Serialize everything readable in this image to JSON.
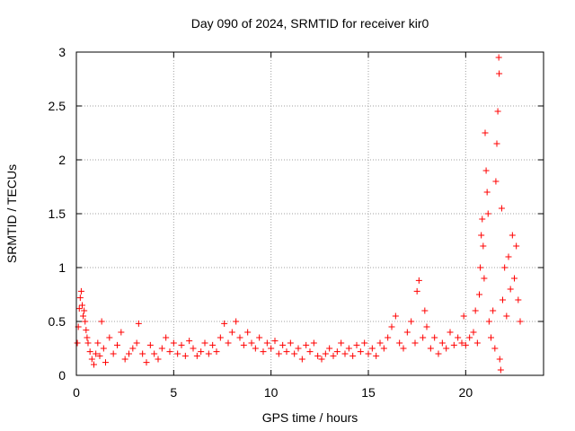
{
  "chart_data": {
    "type": "scatter",
    "title": "Day 090 of 2024, SRMTID for receiver kir0",
    "xlabel": "GPS time / hours",
    "ylabel": "SRMTID / TECUs",
    "xlim": [
      0,
      24
    ],
    "ylim": [
      0,
      3
    ],
    "xticks": [
      0,
      5,
      10,
      15,
      20
    ],
    "yticks": [
      0,
      0.5,
      1,
      1.5,
      2,
      2.5,
      3
    ],
    "xtick_labels": [
      "0",
      "5",
      "10",
      "15",
      "20"
    ],
    "ytick_labels": [
      "0",
      "0.5",
      "1",
      "1.5",
      "2",
      "2.5",
      "3"
    ],
    "grid": true,
    "marker": "+",
    "series": [
      {
        "name": "kir0",
        "color": "#ff0000",
        "points": [
          [
            0.05,
            0.3
          ],
          [
            0.1,
            0.45
          ],
          [
            0.15,
            0.62
          ],
          [
            0.2,
            0.72
          ],
          [
            0.25,
            0.78
          ],
          [
            0.3,
            0.65
          ],
          [
            0.35,
            0.55
          ],
          [
            0.4,
            0.6
          ],
          [
            0.45,
            0.5
          ],
          [
            0.5,
            0.42
          ],
          [
            0.55,
            0.35
          ],
          [
            0.6,
            0.3
          ],
          [
            0.7,
            0.22
          ],
          [
            0.8,
            0.15
          ],
          [
            0.9,
            0.1
          ],
          [
            1.0,
            0.2
          ],
          [
            1.1,
            0.3
          ],
          [
            1.2,
            0.18
          ],
          [
            1.3,
            0.5
          ],
          [
            1.4,
            0.25
          ],
          [
            1.5,
            0.12
          ],
          [
            1.7,
            0.35
          ],
          [
            1.9,
            0.2
          ],
          [
            2.1,
            0.28
          ],
          [
            2.3,
            0.4
          ],
          [
            2.5,
            0.15
          ],
          [
            2.7,
            0.2
          ],
          [
            2.9,
            0.25
          ],
          [
            3.1,
            0.3
          ],
          [
            3.2,
            0.48
          ],
          [
            3.4,
            0.2
          ],
          [
            3.6,
            0.12
          ],
          [
            3.8,
            0.28
          ],
          [
            4.0,
            0.2
          ],
          [
            4.2,
            0.15
          ],
          [
            4.4,
            0.25
          ],
          [
            4.6,
            0.35
          ],
          [
            4.8,
            0.22
          ],
          [
            5.0,
            0.3
          ],
          [
            5.2,
            0.2
          ],
          [
            5.4,
            0.28
          ],
          [
            5.6,
            0.18
          ],
          [
            5.8,
            0.32
          ],
          [
            6.0,
            0.25
          ],
          [
            6.2,
            0.18
          ],
          [
            6.4,
            0.22
          ],
          [
            6.6,
            0.3
          ],
          [
            6.8,
            0.2
          ],
          [
            7.0,
            0.28
          ],
          [
            7.2,
            0.22
          ],
          [
            7.4,
            0.35
          ],
          [
            7.6,
            0.48
          ],
          [
            7.8,
            0.3
          ],
          [
            8.0,
            0.4
          ],
          [
            8.2,
            0.5
          ],
          [
            8.4,
            0.35
          ],
          [
            8.6,
            0.28
          ],
          [
            8.8,
            0.4
          ],
          [
            9.0,
            0.3
          ],
          [
            9.2,
            0.25
          ],
          [
            9.4,
            0.35
          ],
          [
            9.6,
            0.22
          ],
          [
            9.8,
            0.3
          ],
          [
            10.0,
            0.25
          ],
          [
            10.2,
            0.32
          ],
          [
            10.4,
            0.2
          ],
          [
            10.6,
            0.28
          ],
          [
            10.8,
            0.22
          ],
          [
            11.0,
            0.3
          ],
          [
            11.2,
            0.2
          ],
          [
            11.4,
            0.25
          ],
          [
            11.6,
            0.15
          ],
          [
            11.8,
            0.28
          ],
          [
            12.0,
            0.22
          ],
          [
            12.2,
            0.3
          ],
          [
            12.4,
            0.18
          ],
          [
            12.6,
            0.15
          ],
          [
            12.8,
            0.2
          ],
          [
            13.0,
            0.25
          ],
          [
            13.2,
            0.18
          ],
          [
            13.4,
            0.22
          ],
          [
            13.6,
            0.3
          ],
          [
            13.8,
            0.2
          ],
          [
            14.0,
            0.25
          ],
          [
            14.2,
            0.18
          ],
          [
            14.4,
            0.28
          ],
          [
            14.6,
            0.22
          ],
          [
            14.8,
            0.3
          ],
          [
            15.0,
            0.2
          ],
          [
            15.2,
            0.25
          ],
          [
            15.4,
            0.18
          ],
          [
            15.6,
            0.3
          ],
          [
            15.8,
            0.25
          ],
          [
            16.0,
            0.35
          ],
          [
            16.2,
            0.45
          ],
          [
            16.4,
            0.55
          ],
          [
            16.6,
            0.3
          ],
          [
            16.8,
            0.25
          ],
          [
            17.0,
            0.4
          ],
          [
            17.2,
            0.5
          ],
          [
            17.4,
            0.3
          ],
          [
            17.5,
            0.78
          ],
          [
            17.6,
            0.88
          ],
          [
            17.8,
            0.35
          ],
          [
            17.9,
            0.6
          ],
          [
            18.0,
            0.45
          ],
          [
            18.2,
            0.25
          ],
          [
            18.4,
            0.35
          ],
          [
            18.6,
            0.2
          ],
          [
            18.8,
            0.3
          ],
          [
            19.0,
            0.25
          ],
          [
            19.2,
            0.4
          ],
          [
            19.4,
            0.28
          ],
          [
            19.6,
            0.35
          ],
          [
            19.8,
            0.3
          ],
          [
            19.9,
            0.55
          ],
          [
            20.0,
            0.28
          ],
          [
            20.2,
            0.35
          ],
          [
            20.4,
            0.4
          ],
          [
            20.5,
            0.6
          ],
          [
            20.6,
            0.3
          ],
          [
            20.7,
            0.75
          ],
          [
            20.75,
            1.0
          ],
          [
            20.8,
            1.3
          ],
          [
            20.85,
            1.45
          ],
          [
            20.9,
            1.2
          ],
          [
            20.95,
            0.9
          ],
          [
            21.0,
            2.25
          ],
          [
            21.05,
            1.9
          ],
          [
            21.1,
            1.7
          ],
          [
            21.15,
            1.5
          ],
          [
            21.2,
            0.5
          ],
          [
            21.3,
            0.35
          ],
          [
            21.4,
            0.6
          ],
          [
            21.5,
            0.25
          ],
          [
            21.55,
            1.8
          ],
          [
            21.6,
            2.15
          ],
          [
            21.65,
            2.45
          ],
          [
            21.7,
            2.95
          ],
          [
            21.72,
            2.8
          ],
          [
            21.75,
            0.15
          ],
          [
            21.8,
            0.05
          ],
          [
            21.85,
            1.55
          ],
          [
            21.9,
            0.7
          ],
          [
            22.0,
            1.0
          ],
          [
            22.1,
            0.55
          ],
          [
            22.2,
            1.1
          ],
          [
            22.3,
            0.8
          ],
          [
            22.4,
            1.3
          ],
          [
            22.5,
            0.9
          ],
          [
            22.6,
            1.2
          ],
          [
            22.7,
            0.7
          ],
          [
            22.8,
            0.5
          ]
        ]
      }
    ]
  }
}
